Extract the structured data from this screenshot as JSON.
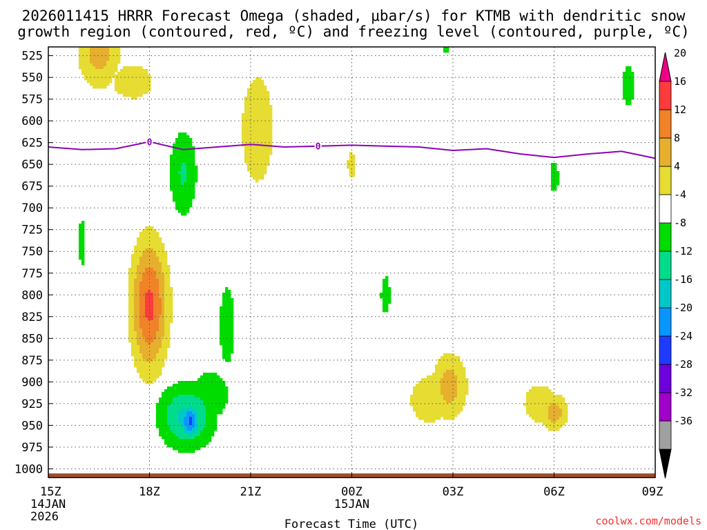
{
  "chart_data": {
    "type": "heatmap",
    "title_line1": "2026011415 HRRR Forecast Omega (shaded, μbar/s) for KTMB with dendritic snow",
    "title_line2": "growth region (contoured, red, ºC) and freezing level (contoured, purple, ºC)",
    "xlabel": "Forecast Time (UTC)",
    "ylabel": "",
    "x_ticks": [
      {
        "hour": 0,
        "label": "15Z",
        "sub1": "14JAN",
        "sub2": "2026"
      },
      {
        "hour": 3,
        "label": "18Z",
        "sub1": "",
        "sub2": ""
      },
      {
        "hour": 6,
        "label": "21Z",
        "sub1": "",
        "sub2": ""
      },
      {
        "hour": 9,
        "label": "00Z",
        "sub1": "15JAN",
        "sub2": ""
      },
      {
        "hour": 12,
        "label": "03Z",
        "sub1": "",
        "sub2": ""
      },
      {
        "hour": 15,
        "label": "06Z",
        "sub1": "",
        "sub2": ""
      },
      {
        "hour": 18,
        "label": "09Z",
        "sub1": "",
        "sub2": ""
      }
    ],
    "xlim": [
      0,
      18
    ],
    "y_ticks": [
      "525",
      "550",
      "575",
      "600",
      "625",
      "650",
      "675",
      "700",
      "725",
      "750",
      "775",
      "800",
      "825",
      "850",
      "875",
      "900",
      "925",
      "950",
      "975",
      "1000"
    ],
    "ylim": [
      1010,
      515
    ],
    "colorbar": {
      "labels": [
        "20",
        "16",
        "12",
        "8",
        "4",
        "-4",
        "-8",
        "-12",
        "-16",
        "-20",
        "-24",
        "-28",
        "-32",
        "-36"
      ],
      "bins": [
        {
          "lo": -40,
          "hi": -36,
          "color": "#000000"
        },
        {
          "lo": -36,
          "hi": -32,
          "color": "#a0a0a0"
        },
        {
          "lo": -32,
          "hi": -28,
          "color": "#a000c8"
        },
        {
          "lo": -28,
          "hi": -24,
          "color": "#6e00dc"
        },
        {
          "lo": -24,
          "hi": -20,
          "color": "#1e3cff"
        },
        {
          "lo": -20,
          "hi": -16,
          "color": "#0a96ff"
        },
        {
          "lo": -16,
          "hi": -12,
          "color": "#00c8c8"
        },
        {
          "lo": -12,
          "hi": -8,
          "color": "#00dc8c"
        },
        {
          "lo": -8,
          "hi": -4,
          "color": "#00dc00"
        },
        {
          "lo": -4,
          "hi": 4,
          "color": "#ffffff"
        },
        {
          "lo": 4,
          "hi": 8,
          "color": "#e6dc32"
        },
        {
          "lo": 8,
          "hi": 12,
          "color": "#e6af2d"
        },
        {
          "lo": 12,
          "hi": 16,
          "color": "#f08228"
        },
        {
          "lo": 16,
          "hi": 20,
          "color": "#fa3c3c"
        },
        {
          "lo": 20,
          "hi": 24,
          "color": "#f00082"
        }
      ]
    },
    "omega_features": [
      {
        "hour": 3.0,
        "pressure": 812,
        "peak": 17,
        "dh": 0.55,
        "dp": 75
      },
      {
        "hour": 1.5,
        "pressure": 520,
        "peak": 10,
        "dh": 0.65,
        "dp": 45
      },
      {
        "hour": 2.5,
        "pressure": 555,
        "peak": 5,
        "dh": 1.2,
        "dp": 40
      },
      {
        "hour": 6.2,
        "pressure": 610,
        "peak": 6.5,
        "dh": 0.65,
        "dp": 85
      },
      {
        "hour": 9.0,
        "pressure": 650,
        "peak": 5,
        "dh": 0.25,
        "dp": 30
      },
      {
        "hour": 11.9,
        "pressure": 905,
        "peak": 10,
        "dh": 0.55,
        "dp": 40
      },
      {
        "hour": 11.3,
        "pressure": 920,
        "peak": 5,
        "dh": 1.15,
        "dp": 55
      },
      {
        "hour": 15.0,
        "pressure": 935,
        "peak": 10,
        "dh": 0.45,
        "dp": 22
      },
      {
        "hour": 14.6,
        "pressure": 925,
        "peak": 5,
        "dh": 1.0,
        "dp": 45
      },
      {
        "hour": 1.0,
        "pressure": 740,
        "peak": -5,
        "dh": 0.2,
        "dp": 55
      },
      {
        "hour": 4.0,
        "pressure": 660,
        "peak": -8.5,
        "dh": 0.45,
        "dp": 55
      },
      {
        "hour": 4.2,
        "pressure": 945,
        "peak": -20.5,
        "dh": 0.35,
        "dp": 22
      },
      {
        "hour": 4.1,
        "pressure": 940,
        "peak": -13,
        "dh": 0.85,
        "dp": 38
      },
      {
        "hour": 5.3,
        "pressure": 835,
        "peak": -5,
        "dh": 0.45,
        "dp": 90
      },
      {
        "hour": 4.8,
        "pressure": 915,
        "peak": -5,
        "dh": 1.1,
        "dp": 55
      },
      {
        "hour": 10.0,
        "pressure": 800,
        "peak": -5,
        "dh": 0.28,
        "dp": 45
      },
      {
        "hour": 17.2,
        "pressure": 560,
        "peak": -5,
        "dh": 0.35,
        "dp": 50
      },
      {
        "hour": 15.0,
        "pressure": 665,
        "peak": -5,
        "dh": 0.28,
        "dp": 35
      },
      {
        "hour": 11.8,
        "pressure": 518,
        "peak": -5,
        "dh": 0.2,
        "dp": 10
      }
    ],
    "freezing_level": {
      "label": "0",
      "label_hours": [
        3.0,
        8.0
      ],
      "hours": [
        0,
        1,
        2,
        3,
        4,
        5,
        6,
        7,
        8,
        9,
        10,
        11,
        12,
        13,
        14,
        15,
        16,
        17,
        18
      ],
      "pressures": [
        630,
        633,
        632,
        624,
        633,
        630,
        627,
        630,
        629,
        628,
        629,
        630,
        634,
        632,
        638,
        642,
        638,
        635,
        643
      ]
    },
    "ground_pressure": 1012
  },
  "colors": {
    "freezing_line": "#8c00b4",
    "ground": "#a05028",
    "watermark": "#ff2828"
  },
  "watermark": "coolwx.com/models"
}
